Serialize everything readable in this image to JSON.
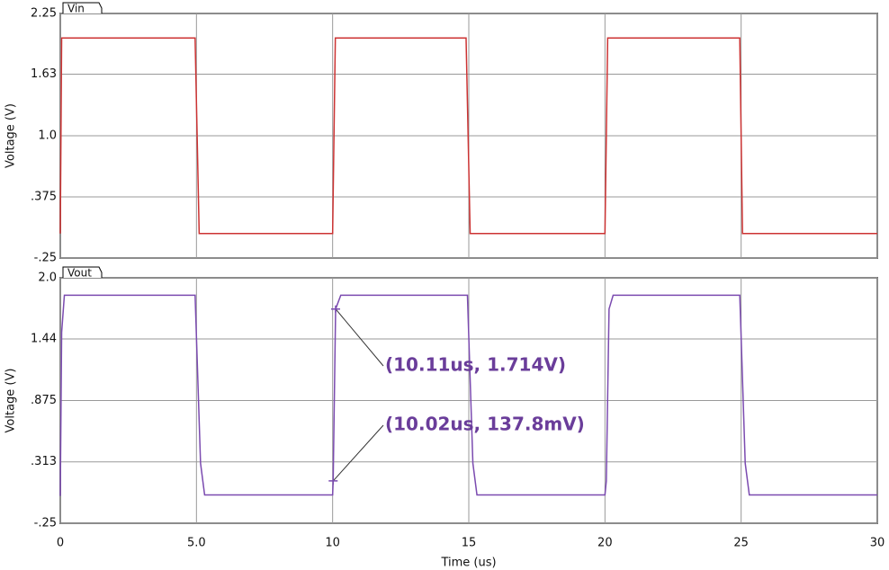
{
  "chart_data": [
    {
      "type": "line",
      "ylabel": "Voltage (V)",
      "xlim": [
        0,
        30
      ],
      "xticks": [
        0,
        5,
        10,
        15,
        20,
        25,
        30
      ],
      "ylim": [
        -0.25,
        2.25
      ],
      "yticks": [
        {
          "value": -0.25,
          "label": "-.25"
        },
        {
          "value": 0.375,
          "label": ".375"
        },
        {
          "value": 1,
          "label": "1.0"
        },
        1.63,
        2.25
      ],
      "grid": true,
      "series": [
        {
          "name": "Vin",
          "color": "#cc3333",
          "x": [
            0,
            0.05,
            4.95,
            5.1,
            10,
            10.1,
            14.9,
            15.05,
            20,
            20.1,
            24.95,
            25.05,
            30
          ],
          "values": [
            0,
            2,
            2,
            0,
            0,
            2,
            2,
            0,
            0,
            2,
            2,
            0,
            0
          ]
        }
      ]
    },
    {
      "type": "line",
      "ylabel": "Voltage (V)",
      "xlabel": "Time (us)",
      "xlim": [
        0,
        30
      ],
      "xticks": [
        0,
        {
          "value": 5,
          "label": "5.0"
        },
        10,
        15,
        20,
        25,
        30
      ],
      "ylim": [
        -0.25,
        2
      ],
      "yticks": [
        {
          "value": -0.25,
          "label": "-.25"
        },
        {
          "value": 0.313,
          "label": ".313"
        },
        {
          "value": 0.875,
          "label": ".875"
        },
        1.44,
        {
          "value": 2,
          "label": "2.0"
        }
      ],
      "grid": true,
      "series": [
        {
          "name": "Vout",
          "color": "#7b4bb0",
          "x": [
            0,
            0.05,
            0.15,
            4.95,
            5.15,
            5.3,
            10,
            10.02,
            10.11,
            10.3,
            14.95,
            15.15,
            15.3,
            20,
            20.05,
            20.15,
            20.3,
            24.95,
            25.15,
            25.3,
            30
          ],
          "values": [
            0,
            1.5,
            1.84,
            1.84,
            0.3,
            0.01,
            0.01,
            0.138,
            1.714,
            1.84,
            1.84,
            0.3,
            0.01,
            0.01,
            0.138,
            1.714,
            1.84,
            1.84,
            0.3,
            0.01,
            0.01
          ]
        }
      ],
      "annotations": [
        {
          "text": "(10.11us, 1.714V)",
          "x": 10.11,
          "y": 1.714
        },
        {
          "text": "(10.02us, 137.8mV)",
          "x": 10.02,
          "y": 0.138
        }
      ]
    }
  ]
}
